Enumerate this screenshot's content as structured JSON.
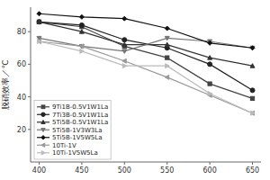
{
  "chart_data": {
    "type": "line",
    "x": [
      400,
      450,
      500,
      550,
      600,
      650
    ],
    "series": [
      {
        "name": "9Ti1B-0.5V1W1La",
        "color": "#444444",
        "marker": "square",
        "values": [
          86,
          83,
          71,
          64,
          48,
          39
        ]
      },
      {
        "name": "7Ti3B-0.5V1W1La",
        "color": "#222222",
        "marker": "circle",
        "values": [
          86,
          84,
          75,
          70,
          60,
          44
        ]
      },
      {
        "name": "5Ti5B-0.5V1W1La",
        "color": "#333333",
        "marker": "triangle-up",
        "values": [
          86,
          80,
          72,
          72,
          64,
          59
        ]
      },
      {
        "name": "5Ti5B-1V3W3La",
        "color": "#777777",
        "marker": "triangle-down",
        "values": [
          76,
          71,
          68,
          76,
          74,
          70
        ]
      },
      {
        "name": "5Ti5B-1V5W5La",
        "color": "#111111",
        "marker": "diamond",
        "values": [
          91,
          89,
          88,
          82,
          73,
          70
        ]
      },
      {
        "name": "10Ti-1V",
        "color": "#999999",
        "marker": "triangle-left",
        "values": [
          74,
          71,
          62,
          52,
          41,
          30
        ]
      },
      {
        "name": "10Ti-1V5W5La",
        "color": "#bbbbbb",
        "marker": "triangle-right",
        "values": [
          74,
          68,
          59,
          59,
          42,
          30
        ]
      }
    ],
    "ylabel": "脱硝效率／℃",
    "xlim": [
      390,
      660
    ],
    "ylim": [
      0,
      95
    ],
    "xticks": [
      400,
      450,
      500,
      550,
      600,
      650
    ],
    "yticks": [
      20,
      40,
      60,
      80
    ],
    "grid": false,
    "legend": "lower left"
  }
}
